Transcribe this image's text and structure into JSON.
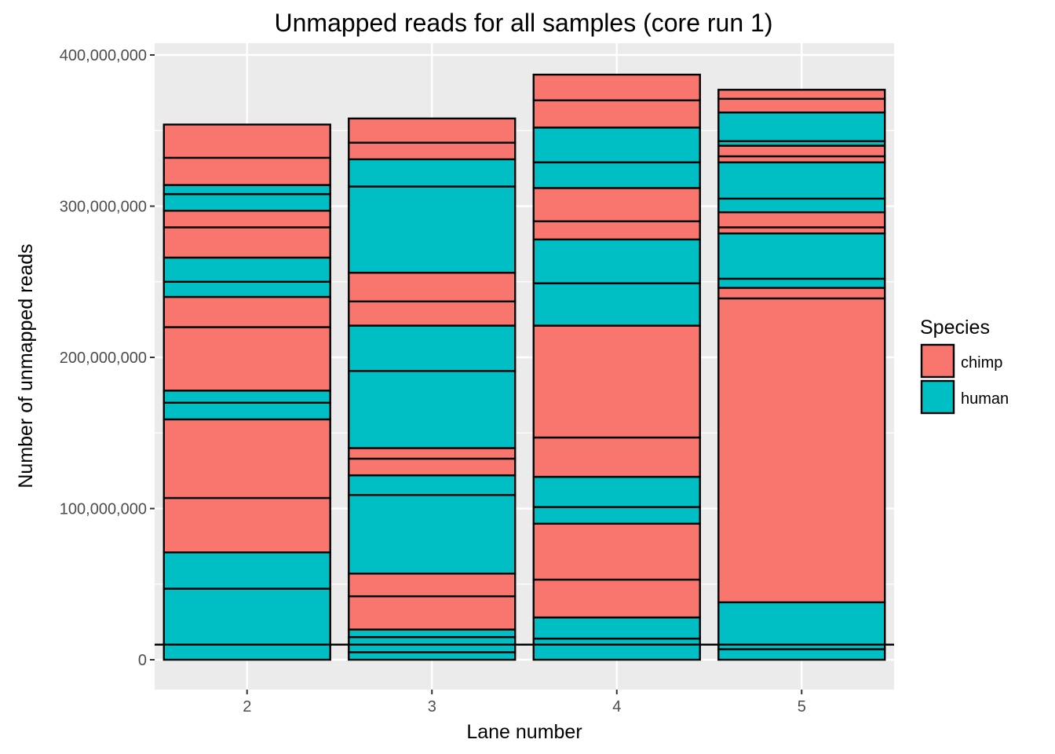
{
  "chart_data": {
    "type": "bar",
    "stacked": true,
    "title": "Unmapped reads for all samples  (core run 1)",
    "xlabel": "Lane number",
    "ylabel": "Number of unmapped reads",
    "ylim": [
      -19000000,
      400000000
    ],
    "yticks": [
      0,
      100000000,
      200000000,
      300000000,
      400000000
    ],
    "ytick_labels": [
      "0",
      "100,000,000",
      "200,000,000",
      "300,000,000",
      "400,000,000"
    ],
    "categories": [
      "2",
      "3",
      "4",
      "5"
    ],
    "reference_line_y": 10000000,
    "grid": true,
    "legend": {
      "title": "Species",
      "position": "right",
      "items": [
        {
          "label": "chimp",
          "color": "#F8766D"
        },
        {
          "label": "human",
          "color": "#00BFC4"
        }
      ]
    },
    "colors": {
      "chimp": "#F8766D",
      "human": "#00BFC4"
    },
    "stacks": [
      {
        "lane": "2",
        "segments": [
          {
            "species": "human",
            "value": 47000000
          },
          {
            "species": "human",
            "value": 24000000
          },
          {
            "species": "chimp",
            "value": 36000000
          },
          {
            "species": "chimp",
            "value": 52000000
          },
          {
            "species": "human",
            "value": 11000000
          },
          {
            "species": "human",
            "value": 8000000
          },
          {
            "species": "chimp",
            "value": 42000000
          },
          {
            "species": "chimp",
            "value": 20000000
          },
          {
            "species": "human",
            "value": 10000000
          },
          {
            "species": "human",
            "value": 16000000
          },
          {
            "species": "chimp",
            "value": 20000000
          },
          {
            "species": "chimp",
            "value": 11000000
          },
          {
            "species": "human",
            "value": 11000000
          },
          {
            "species": "human",
            "value": 6000000
          },
          {
            "species": "chimp",
            "value": 18000000
          },
          {
            "species": "chimp",
            "value": 22000000
          }
        ]
      },
      {
        "lane": "3",
        "segments": [
          {
            "species": "human",
            "value": 5000000
          },
          {
            "species": "human",
            "value": 10000000
          },
          {
            "species": "human",
            "value": 5000000
          },
          {
            "species": "chimp",
            "value": 22000000
          },
          {
            "species": "chimp",
            "value": 15000000
          },
          {
            "species": "human",
            "value": 52000000
          },
          {
            "species": "human",
            "value": 13000000
          },
          {
            "species": "chimp",
            "value": 11000000
          },
          {
            "species": "chimp",
            "value": 7000000
          },
          {
            "species": "human",
            "value": 51000000
          },
          {
            "species": "human",
            "value": 30000000
          },
          {
            "species": "chimp",
            "value": 16000000
          },
          {
            "species": "chimp",
            "value": 19000000
          },
          {
            "species": "human",
            "value": 57000000
          },
          {
            "species": "human",
            "value": 18000000
          },
          {
            "species": "chimp",
            "value": 11000000
          },
          {
            "species": "chimp",
            "value": 16000000
          }
        ]
      },
      {
        "lane": "4",
        "segments": [
          {
            "species": "human",
            "value": 14000000
          },
          {
            "species": "human",
            "value": 14000000
          },
          {
            "species": "chimp",
            "value": 25000000
          },
          {
            "species": "chimp",
            "value": 37000000
          },
          {
            "species": "human",
            "value": 11000000
          },
          {
            "species": "human",
            "value": 20000000
          },
          {
            "species": "chimp",
            "value": 26000000
          },
          {
            "species": "chimp",
            "value": 74000000
          },
          {
            "species": "human",
            "value": 28000000
          },
          {
            "species": "human",
            "value": 29000000
          },
          {
            "species": "chimp",
            "value": 12000000
          },
          {
            "species": "chimp",
            "value": 22000000
          },
          {
            "species": "human",
            "value": 17000000
          },
          {
            "species": "human",
            "value": 23000000
          },
          {
            "species": "chimp",
            "value": 18000000
          },
          {
            "species": "chimp",
            "value": 17000000
          }
        ]
      },
      {
        "lane": "5",
        "segments": [
          {
            "species": "human",
            "value": 7000000
          },
          {
            "species": "human",
            "value": 31000000
          },
          {
            "species": "chimp",
            "value": 201000000
          },
          {
            "species": "chimp",
            "value": 7000000
          },
          {
            "species": "human",
            "value": 6000000
          },
          {
            "species": "human",
            "value": 30000000
          },
          {
            "species": "chimp",
            "value": 4000000
          },
          {
            "species": "chimp",
            "value": 10000000
          },
          {
            "species": "human",
            "value": 9000000
          },
          {
            "species": "human",
            "value": 24000000
          },
          {
            "species": "chimp",
            "value": 4000000
          },
          {
            "species": "chimp",
            "value": 7000000
          },
          {
            "species": "human",
            "value": 3000000
          },
          {
            "species": "human",
            "value": 19000000
          },
          {
            "species": "chimp",
            "value": 9000000
          },
          {
            "species": "chimp",
            "value": 6000000
          }
        ]
      }
    ]
  }
}
